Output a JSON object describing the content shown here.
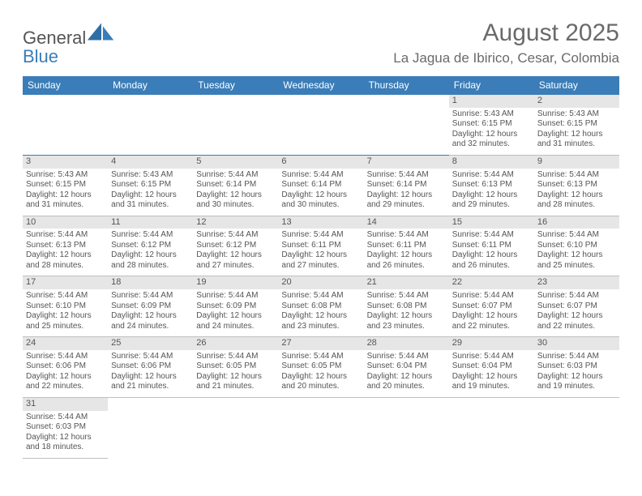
{
  "logo": {
    "text_a": "General",
    "text_b": "Blue"
  },
  "title": "August 2025",
  "location": "La Jagua de Ibirico, Cesar, Colombia",
  "colors": {
    "header_bg": "#3a7db8",
    "header_text": "#ffffff",
    "daynum_bg": "#e6e6e6",
    "text": "#555555",
    "row_border_top": "#3a7db8",
    "row_border_bottom": "#bfbfbf",
    "page_bg": "#ffffff"
  },
  "day_headers": [
    "Sunday",
    "Monday",
    "Tuesday",
    "Wednesday",
    "Thursday",
    "Friday",
    "Saturday"
  ],
  "weeks": [
    [
      {
        "empty": true
      },
      {
        "empty": true
      },
      {
        "empty": true
      },
      {
        "empty": true
      },
      {
        "empty": true
      },
      {
        "day": "1",
        "sunrise": "Sunrise: 5:43 AM",
        "sunset": "Sunset: 6:15 PM",
        "daylight": "Daylight: 12 hours and 32 minutes."
      },
      {
        "day": "2",
        "sunrise": "Sunrise: 5:43 AM",
        "sunset": "Sunset: 6:15 PM",
        "daylight": "Daylight: 12 hours and 31 minutes."
      }
    ],
    [
      {
        "day": "3",
        "sunrise": "Sunrise: 5:43 AM",
        "sunset": "Sunset: 6:15 PM",
        "daylight": "Daylight: 12 hours and 31 minutes."
      },
      {
        "day": "4",
        "sunrise": "Sunrise: 5:43 AM",
        "sunset": "Sunset: 6:15 PM",
        "daylight": "Daylight: 12 hours and 31 minutes."
      },
      {
        "day": "5",
        "sunrise": "Sunrise: 5:44 AM",
        "sunset": "Sunset: 6:14 PM",
        "daylight": "Daylight: 12 hours and 30 minutes."
      },
      {
        "day": "6",
        "sunrise": "Sunrise: 5:44 AM",
        "sunset": "Sunset: 6:14 PM",
        "daylight": "Daylight: 12 hours and 30 minutes."
      },
      {
        "day": "7",
        "sunrise": "Sunrise: 5:44 AM",
        "sunset": "Sunset: 6:14 PM",
        "daylight": "Daylight: 12 hours and 29 minutes."
      },
      {
        "day": "8",
        "sunrise": "Sunrise: 5:44 AM",
        "sunset": "Sunset: 6:13 PM",
        "daylight": "Daylight: 12 hours and 29 minutes."
      },
      {
        "day": "9",
        "sunrise": "Sunrise: 5:44 AM",
        "sunset": "Sunset: 6:13 PM",
        "daylight": "Daylight: 12 hours and 28 minutes."
      }
    ],
    [
      {
        "day": "10",
        "sunrise": "Sunrise: 5:44 AM",
        "sunset": "Sunset: 6:13 PM",
        "daylight": "Daylight: 12 hours and 28 minutes."
      },
      {
        "day": "11",
        "sunrise": "Sunrise: 5:44 AM",
        "sunset": "Sunset: 6:12 PM",
        "daylight": "Daylight: 12 hours and 28 minutes."
      },
      {
        "day": "12",
        "sunrise": "Sunrise: 5:44 AM",
        "sunset": "Sunset: 6:12 PM",
        "daylight": "Daylight: 12 hours and 27 minutes."
      },
      {
        "day": "13",
        "sunrise": "Sunrise: 5:44 AM",
        "sunset": "Sunset: 6:11 PM",
        "daylight": "Daylight: 12 hours and 27 minutes."
      },
      {
        "day": "14",
        "sunrise": "Sunrise: 5:44 AM",
        "sunset": "Sunset: 6:11 PM",
        "daylight": "Daylight: 12 hours and 26 minutes."
      },
      {
        "day": "15",
        "sunrise": "Sunrise: 5:44 AM",
        "sunset": "Sunset: 6:11 PM",
        "daylight": "Daylight: 12 hours and 26 minutes."
      },
      {
        "day": "16",
        "sunrise": "Sunrise: 5:44 AM",
        "sunset": "Sunset: 6:10 PM",
        "daylight": "Daylight: 12 hours and 25 minutes."
      }
    ],
    [
      {
        "day": "17",
        "sunrise": "Sunrise: 5:44 AM",
        "sunset": "Sunset: 6:10 PM",
        "daylight": "Daylight: 12 hours and 25 minutes."
      },
      {
        "day": "18",
        "sunrise": "Sunrise: 5:44 AM",
        "sunset": "Sunset: 6:09 PM",
        "daylight": "Daylight: 12 hours and 24 minutes."
      },
      {
        "day": "19",
        "sunrise": "Sunrise: 5:44 AM",
        "sunset": "Sunset: 6:09 PM",
        "daylight": "Daylight: 12 hours and 24 minutes."
      },
      {
        "day": "20",
        "sunrise": "Sunrise: 5:44 AM",
        "sunset": "Sunset: 6:08 PM",
        "daylight": "Daylight: 12 hours and 23 minutes."
      },
      {
        "day": "21",
        "sunrise": "Sunrise: 5:44 AM",
        "sunset": "Sunset: 6:08 PM",
        "daylight": "Daylight: 12 hours and 23 minutes."
      },
      {
        "day": "22",
        "sunrise": "Sunrise: 5:44 AM",
        "sunset": "Sunset: 6:07 PM",
        "daylight": "Daylight: 12 hours and 22 minutes."
      },
      {
        "day": "23",
        "sunrise": "Sunrise: 5:44 AM",
        "sunset": "Sunset: 6:07 PM",
        "daylight": "Daylight: 12 hours and 22 minutes."
      }
    ],
    [
      {
        "day": "24",
        "sunrise": "Sunrise: 5:44 AM",
        "sunset": "Sunset: 6:06 PM",
        "daylight": "Daylight: 12 hours and 22 minutes."
      },
      {
        "day": "25",
        "sunrise": "Sunrise: 5:44 AM",
        "sunset": "Sunset: 6:06 PM",
        "daylight": "Daylight: 12 hours and 21 minutes."
      },
      {
        "day": "26",
        "sunrise": "Sunrise: 5:44 AM",
        "sunset": "Sunset: 6:05 PM",
        "daylight": "Daylight: 12 hours and 21 minutes."
      },
      {
        "day": "27",
        "sunrise": "Sunrise: 5:44 AM",
        "sunset": "Sunset: 6:05 PM",
        "daylight": "Daylight: 12 hours and 20 minutes."
      },
      {
        "day": "28",
        "sunrise": "Sunrise: 5:44 AM",
        "sunset": "Sunset: 6:04 PM",
        "daylight": "Daylight: 12 hours and 20 minutes."
      },
      {
        "day": "29",
        "sunrise": "Sunrise: 5:44 AM",
        "sunset": "Sunset: 6:04 PM",
        "daylight": "Daylight: 12 hours and 19 minutes."
      },
      {
        "day": "30",
        "sunrise": "Sunrise: 5:44 AM",
        "sunset": "Sunset: 6:03 PM",
        "daylight": "Daylight: 12 hours and 19 minutes."
      }
    ],
    [
      {
        "day": "31",
        "sunrise": "Sunrise: 5:44 AM",
        "sunset": "Sunset: 6:03 PM",
        "daylight": "Daylight: 12 hours and 18 minutes."
      },
      {
        "empty": true
      },
      {
        "empty": true
      },
      {
        "empty": true
      },
      {
        "empty": true
      },
      {
        "empty": true
      },
      {
        "empty": true
      }
    ]
  ]
}
